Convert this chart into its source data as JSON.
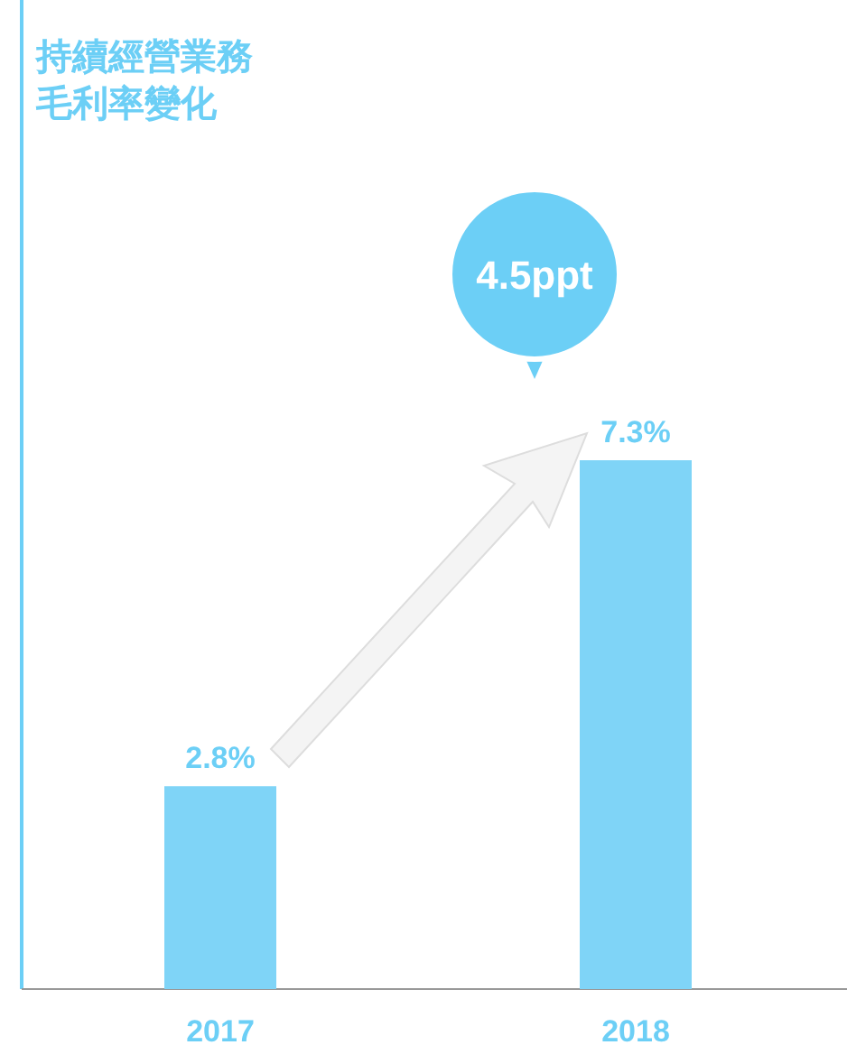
{
  "chart_data": {
    "type": "bar",
    "title": "持續經營業務毛利率變化",
    "categories": [
      "2017",
      "2018"
    ],
    "values": [
      2.8,
      7.3
    ],
    "value_labels": [
      "2.8%",
      "7.3%"
    ],
    "color": "#7fd4f7",
    "annotations": [
      "4.5ppt"
    ]
  }
}
